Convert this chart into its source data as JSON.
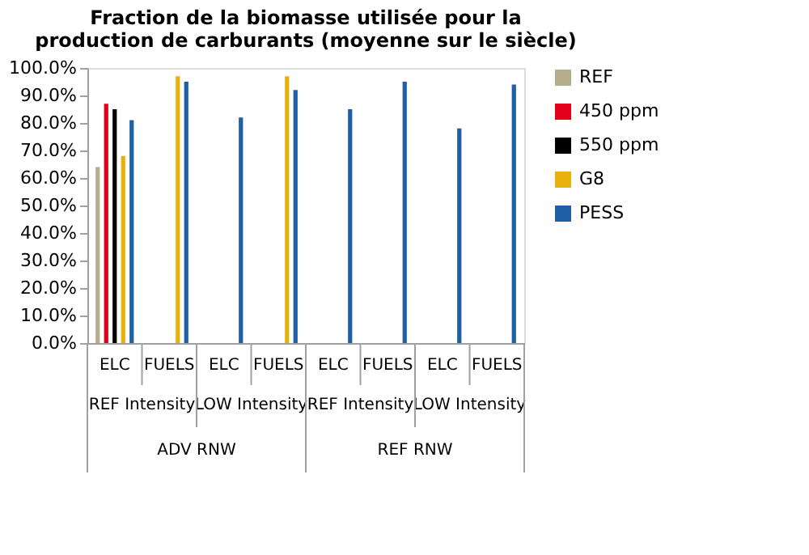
{
  "chart_data": {
    "type": "bar",
    "title": "Fraction de la biomasse utilisée pour la production de carburants (moyenne sur le siècle)",
    "categories": [
      "ELC",
      "FUELS",
      "ELC",
      "FUELS",
      "ELC",
      "FUELS",
      "ELC",
      "FUELS"
    ],
    "series": [
      {
        "name": "REF",
        "color": "#b5ad8c",
        "values": [
          64,
          null,
          null,
          null,
          null,
          null,
          null,
          null
        ]
      },
      {
        "name": "450 ppm",
        "color": "#e3001b",
        "values": [
          87,
          null,
          null,
          null,
          null,
          null,
          null,
          null
        ]
      },
      {
        "name": "550 ppm",
        "color": "#000000",
        "values": [
          85,
          null,
          null,
          null,
          null,
          null,
          null,
          null
        ]
      },
      {
        "name": "G8",
        "color": "#e8b10c",
        "values": [
          68,
          97,
          null,
          97,
          null,
          null,
          null,
          null
        ]
      },
      {
        "name": "PESS",
        "color": "#1f5fa6",
        "values": [
          81,
          95,
          82,
          92,
          85,
          95,
          78,
          94
        ]
      }
    ],
    "ylim": [
      0,
      100
    ],
    "yticks": [
      {
        "value": 0,
        "label": "0.0%"
      },
      {
        "value": 10,
        "label": "10.0%"
      },
      {
        "value": 20,
        "label": "20.0%"
      },
      {
        "value": 30,
        "label": "30.0%"
      },
      {
        "value": 40,
        "label": "40.0%"
      },
      {
        "value": 50,
        "label": "50.0%"
      },
      {
        "value": 60,
        "label": "60.0%"
      },
      {
        "value": 70,
        "label": "70.0%"
      },
      {
        "value": 80,
        "label": "80.0%"
      },
      {
        "value": 90,
        "label": "90.0%"
      },
      {
        "value": 100,
        "label": "100.0%"
      }
    ],
    "annotations": [
      "REF Intensity",
      "LOW Intensity",
      "REF Intensity",
      "LOW Intensity",
      "ADV RNW",
      "REF RNW"
    ],
    "grid": false,
    "legend": "right"
  }
}
